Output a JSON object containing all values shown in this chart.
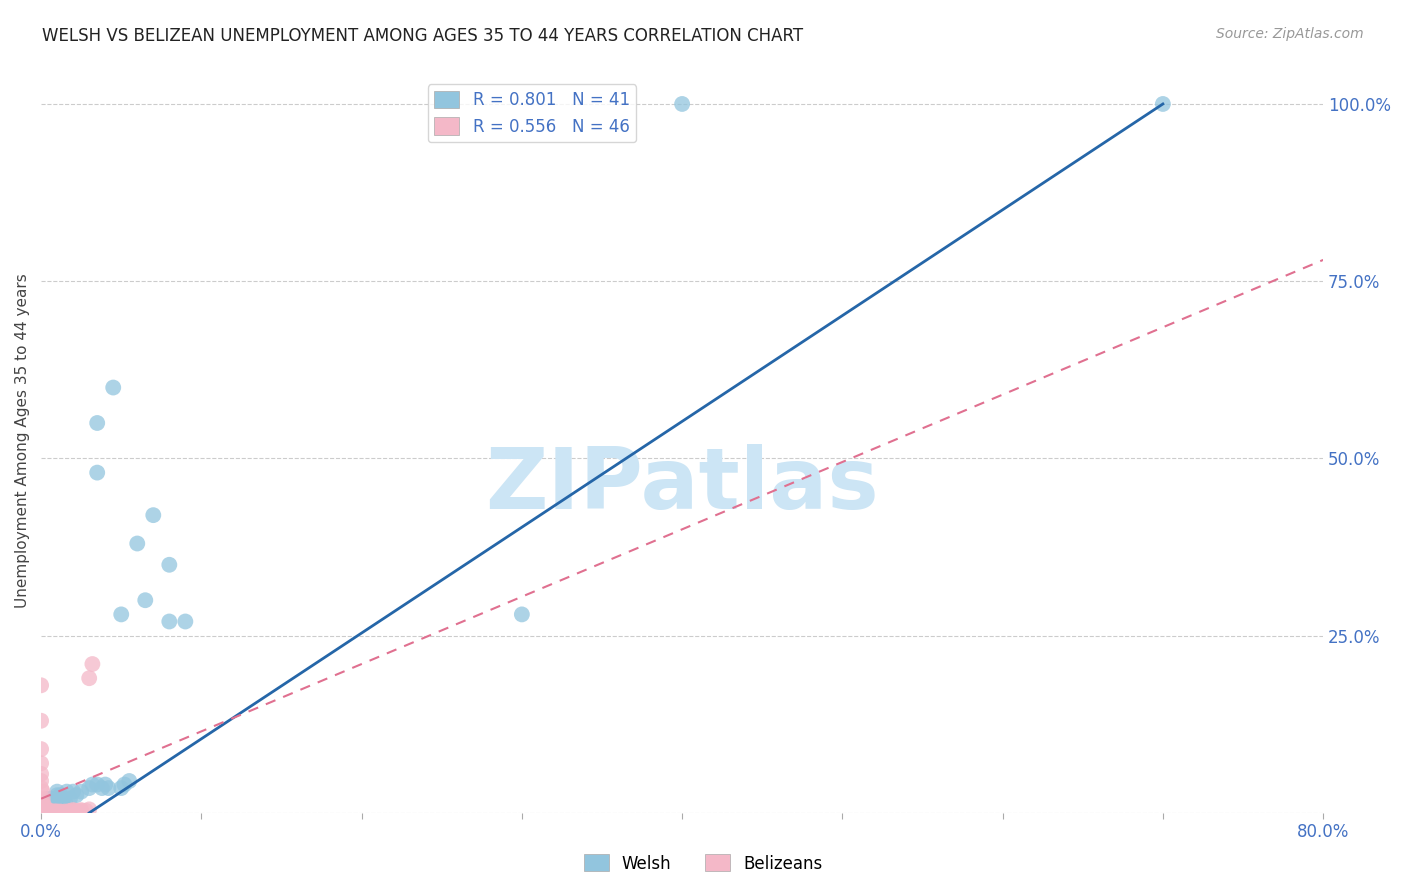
{
  "title": "WELSH VS BELIZEAN UNEMPLOYMENT AMONG AGES 35 TO 44 YEARS CORRELATION CHART",
  "source": "Source: ZipAtlas.com",
  "ylabel": "Unemployment Among Ages 35 to 44 years",
  "xlim": [
    0.0,
    0.8
  ],
  "ylim": [
    0.0,
    1.05
  ],
  "welsh_color": "#92c5de",
  "belizean_color": "#f4b8c8",
  "welsh_line_color": "#2566a8",
  "belizean_line_color": "#e07090",
  "welsh_line": [
    [
      0.03,
      0.0
    ],
    [
      0.7,
      1.0
    ]
  ],
  "belizean_line": [
    [
      0.0,
      0.02
    ],
    [
      0.8,
      0.78
    ]
  ],
  "welsh_points": [
    [
      0.003,
      0.01
    ],
    [
      0.004,
      0.02
    ],
    [
      0.005,
      0.01
    ],
    [
      0.005,
      0.015
    ],
    [
      0.006,
      0.02
    ],
    [
      0.007,
      0.01
    ],
    [
      0.008,
      0.02
    ],
    [
      0.01,
      0.025
    ],
    [
      0.01,
      0.03
    ],
    [
      0.012,
      0.02
    ],
    [
      0.012,
      0.025
    ],
    [
      0.013,
      0.015
    ],
    [
      0.014,
      0.02
    ],
    [
      0.015,
      0.015
    ],
    [
      0.016,
      0.03
    ],
    [
      0.018,
      0.02
    ],
    [
      0.02,
      0.03
    ],
    [
      0.022,
      0.025
    ],
    [
      0.025,
      0.03
    ],
    [
      0.03,
      0.035
    ],
    [
      0.032,
      0.04
    ],
    [
      0.035,
      0.04
    ],
    [
      0.038,
      0.035
    ],
    [
      0.04,
      0.04
    ],
    [
      0.042,
      0.035
    ],
    [
      0.05,
      0.035
    ],
    [
      0.052,
      0.04
    ],
    [
      0.055,
      0.045
    ],
    [
      0.06,
      0.38
    ],
    [
      0.065,
      0.3
    ],
    [
      0.07,
      0.42
    ],
    [
      0.08,
      0.35
    ],
    [
      0.035,
      0.55
    ],
    [
      0.045,
      0.6
    ],
    [
      0.035,
      0.48
    ],
    [
      0.05,
      0.28
    ],
    [
      0.08,
      0.27
    ],
    [
      0.09,
      0.27
    ],
    [
      0.3,
      0.28
    ],
    [
      0.4,
      1.0
    ],
    [
      0.7,
      1.0
    ]
  ],
  "belizean_points": [
    [
      0.0,
      0.18
    ],
    [
      0.0,
      0.13
    ],
    [
      0.0,
      0.09
    ],
    [
      0.0,
      0.07
    ],
    [
      0.0,
      0.055
    ],
    [
      0.0,
      0.045
    ],
    [
      0.0,
      0.035
    ],
    [
      0.001,
      0.03
    ],
    [
      0.001,
      0.02
    ],
    [
      0.001,
      0.015
    ],
    [
      0.002,
      0.01
    ],
    [
      0.002,
      0.008
    ],
    [
      0.002,
      0.006
    ],
    [
      0.003,
      0.005
    ],
    [
      0.003,
      0.004
    ],
    [
      0.004,
      0.004
    ],
    [
      0.004,
      0.003
    ],
    [
      0.005,
      0.003
    ],
    [
      0.005,
      0.002
    ],
    [
      0.006,
      0.002
    ],
    [
      0.007,
      0.002
    ],
    [
      0.008,
      0.002
    ],
    [
      0.009,
      0.002
    ],
    [
      0.01,
      0.002
    ],
    [
      0.01,
      0.001
    ],
    [
      0.012,
      0.001
    ],
    [
      0.013,
      0.001
    ],
    [
      0.015,
      0.001
    ],
    [
      0.016,
      0.001
    ],
    [
      0.018,
      0.002
    ],
    [
      0.02,
      0.002
    ],
    [
      0.022,
      0.003
    ],
    [
      0.025,
      0.003
    ],
    [
      0.028,
      0.003
    ],
    [
      0.03,
      0.19
    ],
    [
      0.032,
      0.21
    ],
    [
      0.004,
      0.001
    ],
    [
      0.006,
      0.001
    ],
    [
      0.008,
      0.001
    ],
    [
      0.01,
      0.001
    ],
    [
      0.012,
      0.002
    ],
    [
      0.015,
      0.002
    ],
    [
      0.018,
      0.003
    ],
    [
      0.02,
      0.004
    ],
    [
      0.025,
      0.004
    ],
    [
      0.03,
      0.005
    ]
  ],
  "xticks": [
    0.0,
    0.1,
    0.2,
    0.3,
    0.4,
    0.5,
    0.6,
    0.7,
    0.8
  ],
  "xtick_labels": [
    "0.0%",
    "",
    "",
    "",
    "",
    "",
    "",
    "",
    "80.0%"
  ],
  "yticks_right": [
    0.0,
    0.25,
    0.5,
    0.75,
    1.0
  ],
  "ytick_labels_right": [
    "",
    "25.0%",
    "50.0%",
    "75.0%",
    "100.0%"
  ],
  "grid_color": "#cccccc",
  "background_color": "#ffffff",
  "watermark_text": "ZIPatlas",
  "watermark_color": "#cce5f5",
  "legend_welsh_label": "R = 0.801   N = 41",
  "legend_belizean_label": "R = 0.556   N = 46"
}
